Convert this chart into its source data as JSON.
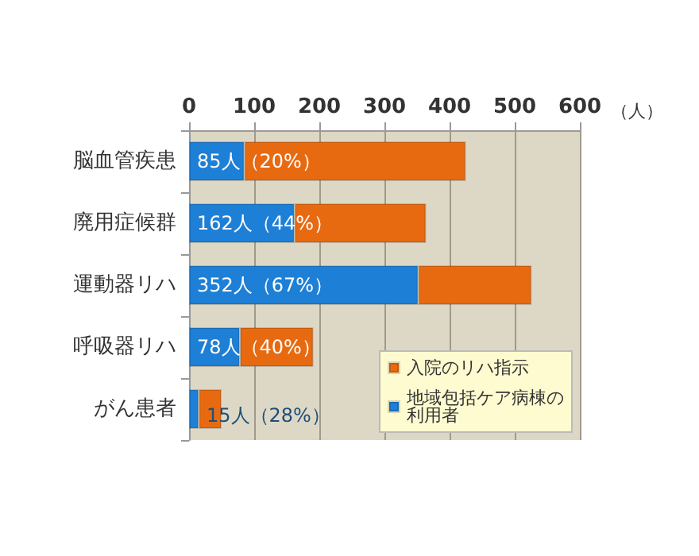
{
  "chart_data": {
    "type": "bar",
    "orientation": "horizontal",
    "stacked": true,
    "xlabel": "（人）",
    "categories": [
      "脳血管疾患",
      "廃用症候群",
      "運動器リハ",
      "呼吸器リハ",
      "がん患者"
    ],
    "series": [
      {
        "name": "地域包括ケア病棟の利用者",
        "color": "#1e7fd6",
        "values": [
          85,
          162,
          352,
          78,
          15
        ],
        "value_labels": [
          "85人（20%）",
          "162人（44%）",
          "352人（67%）",
          "78人（40%）",
          "15人（28%）"
        ]
      },
      {
        "name": "入院のリハ指示",
        "color": "#e86a10",
        "values": [
          340,
          202,
          174,
          113,
          35
        ]
      }
    ],
    "xlim": [
      0,
      600
    ],
    "xticks": [
      0,
      100,
      200,
      300,
      400,
      500,
      600
    ],
    "grid": "x",
    "legend": "bottom right"
  }
}
